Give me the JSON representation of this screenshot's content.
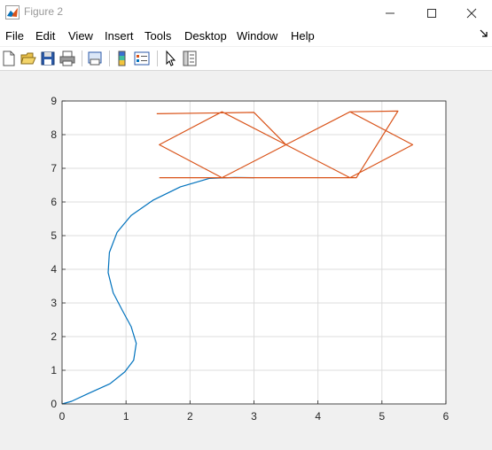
{
  "window": {
    "title": "Figure 2"
  },
  "menu": {
    "items": [
      "File",
      "Edit",
      "View",
      "Insert",
      "Tools",
      "Desktop",
      "Window",
      "Help"
    ]
  },
  "toolbar": {
    "buttons": [
      "new-figure-icon",
      "open-file-icon",
      "save-icon",
      "print-icon",
      "print-preview-icon",
      "insert-colorbar-icon",
      "insert-legend-icon",
      "edit-plot-icon",
      "property-inspector-icon"
    ]
  },
  "chart_data": {
    "type": "line",
    "title": "",
    "xlabel": "",
    "ylabel": "",
    "xlim": [
      0,
      6
    ],
    "ylim": [
      0,
      9
    ],
    "xticks": [
      "0",
      "1",
      "2",
      "3",
      "4",
      "5",
      "6"
    ],
    "yticks": [
      "0",
      "1",
      "2",
      "3",
      "4",
      "5",
      "6",
      "7",
      "8",
      "9"
    ],
    "grid": true,
    "series": [
      {
        "color": "#0072bd",
        "x": [
          0.0,
          0.15,
          0.4,
          0.75,
          0.98,
          1.12,
          1.16,
          1.08,
          0.95,
          0.8,
          0.72,
          0.74,
          0.86,
          1.08,
          1.42,
          1.85,
          2.3,
          2.7,
          3.0
        ],
        "y": [
          0.0,
          0.08,
          0.3,
          0.6,
          0.95,
          1.3,
          1.8,
          2.3,
          2.75,
          3.3,
          3.9,
          4.5,
          5.1,
          5.6,
          6.05,
          6.45,
          6.7,
          6.73,
          6.72
        ]
      },
      {
        "color": "#d95319",
        "x": [
          1.48,
          3.0,
          3.5,
          4.5,
          5.48,
          4.5,
          3.5,
          2.5,
          1.52,
          2.5,
          3.5,
          4.5,
          5.25,
          4.6,
          3.5,
          2.5,
          1.52
        ],
        "y": [
          8.62,
          8.66,
          7.7,
          8.68,
          7.7,
          6.72,
          7.7,
          8.68,
          7.7,
          6.72,
          7.7,
          8.68,
          8.7,
          6.72,
          6.72,
          6.72,
          6.72
        ]
      }
    ]
  }
}
